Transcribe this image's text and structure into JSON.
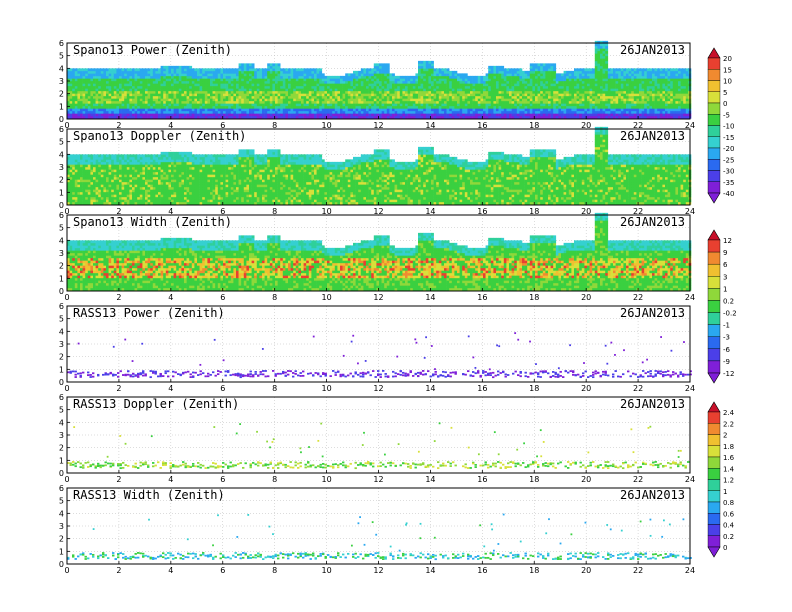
{
  "date_label": "26JAN2013",
  "x_ticks": [
    "0",
    "2",
    "4",
    "6",
    "8",
    "10",
    "12",
    "14",
    "16",
    "18",
    "20",
    "22",
    "24"
  ],
  "y_ticks": [
    "0",
    "1",
    "2",
    "3",
    "4",
    "5",
    "6"
  ],
  "panels": [
    {
      "title": "Spano13 Power (Zenith)",
      "kind": "profiler",
      "field": "power"
    },
    {
      "title": "Spano13 Doppler (Zenith)",
      "kind": "profiler",
      "field": "doppler"
    },
    {
      "title": "Spano13 Width (Zenith)",
      "kind": "profiler",
      "field": "width"
    },
    {
      "title": "RASS13 Power (Zenith)",
      "kind": "rass",
      "field": "power"
    },
    {
      "title": "RASS13 Doppler (Zenith)",
      "kind": "rass",
      "field": "doppler"
    },
    {
      "title": "RASS13 Width (Zenith)",
      "kind": "rass",
      "field": "width"
    }
  ],
  "colorbars": [
    {
      "labels": [
        "20",
        "15",
        "10",
        "5",
        "0",
        "-5",
        "-10",
        "-15",
        "-20",
        "-25",
        "-30",
        "-35",
        "-40"
      ]
    },
    {
      "labels": [
        "12",
        "9",
        "6",
        "3",
        "1",
        "0.2",
        "-0.2",
        "-1",
        "-3",
        "-6",
        "-9",
        "-12"
      ]
    },
    {
      "labels": [
        "2.4",
        "2.2",
        "2",
        "1.8",
        "1.6",
        "1.4",
        "1.2",
        "1",
        "0.8",
        "0.6",
        "0.4",
        "0.2",
        "0"
      ]
    }
  ],
  "palette": [
    "#7f1fd8",
    "#4b3fe8",
    "#2a6af0",
    "#2aa8f0",
    "#35d0d0",
    "#2fd09a",
    "#3ad040",
    "#8fd83a",
    "#d8e03a",
    "#f0c030",
    "#f08a30",
    "#e84030",
    "#c8102a"
  ],
  "chart_data": [
    {
      "type": "heatmap",
      "title": "Spano13 Power (Zenith)",
      "x_range": [
        0,
        24
      ],
      "y_range": [
        0,
        6
      ],
      "annotation": "26JAN2013"
    },
    {
      "type": "heatmap",
      "title": "Spano13 Doppler (Zenith)",
      "x_range": [
        0,
        24
      ],
      "y_range": [
        0,
        6
      ],
      "annotation": "26JAN2013"
    },
    {
      "type": "heatmap",
      "title": "Spano13 Width (Zenith)",
      "x_range": [
        0,
        24
      ],
      "y_range": [
        0,
        6
      ],
      "annotation": "26JAN2013"
    },
    {
      "type": "heatmap",
      "title": "RASS13 Power (Zenith)",
      "x_range": [
        0,
        24
      ],
      "y_range": [
        0,
        6
      ],
      "annotation": "26JAN2013"
    },
    {
      "type": "heatmap",
      "title": "RASS13 Doppler (Zenith)",
      "x_range": [
        0,
        24
      ],
      "y_range": [
        0,
        6
      ],
      "annotation": "26JAN2013"
    },
    {
      "type": "heatmap",
      "title": "RASS13 Width (Zenith)",
      "x_range": [
        0,
        24
      ],
      "y_range": [
        0,
        6
      ],
      "annotation": "26JAN2013"
    }
  ]
}
